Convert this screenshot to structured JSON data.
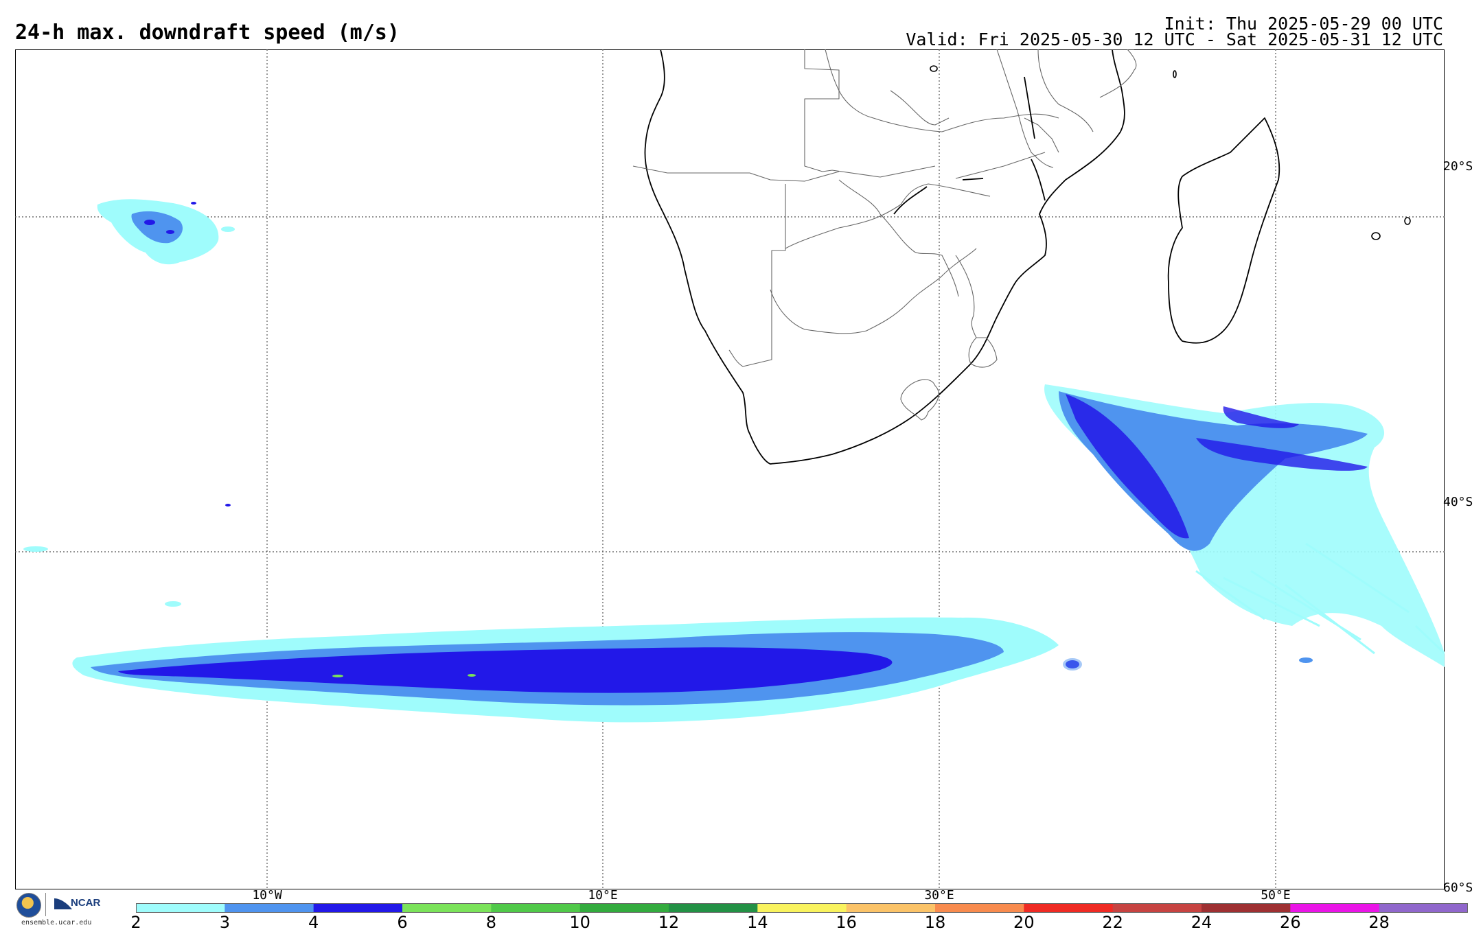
{
  "header": {
    "title": "24-h max. downdraft speed (m/s)",
    "init": "Init: Thu 2025-05-29 00 UTC",
    "valid": "Valid: Fri 2025-05-30 12 UTC - Sat 2025-05-31 12 UTC"
  },
  "map": {
    "lat_labels": [
      "20°S",
      "40°S",
      "60°S"
    ],
    "lon_labels": [
      "10°W",
      "10°E",
      "30°E",
      "50°E"
    ]
  },
  "colorbar": {
    "ticks": [
      "2",
      "3",
      "4",
      "6",
      "8",
      "10",
      "12",
      "14",
      "16",
      "18",
      "20",
      "22",
      "24",
      "26",
      "28"
    ],
    "colors": [
      "#9ffcfc",
      "#4f94ef",
      "#2218e8",
      "#7be35a",
      "#50c949",
      "#33ab3e",
      "#239145",
      "#f9f35e",
      "#fbc368",
      "#f88b4e",
      "#ef2b24",
      "#c74341",
      "#9e3032",
      "#ea14e7",
      "#9067cc"
    ]
  },
  "logos": {
    "org_text": "NCAR",
    "url": "ensemble.ucar.edu"
  }
}
